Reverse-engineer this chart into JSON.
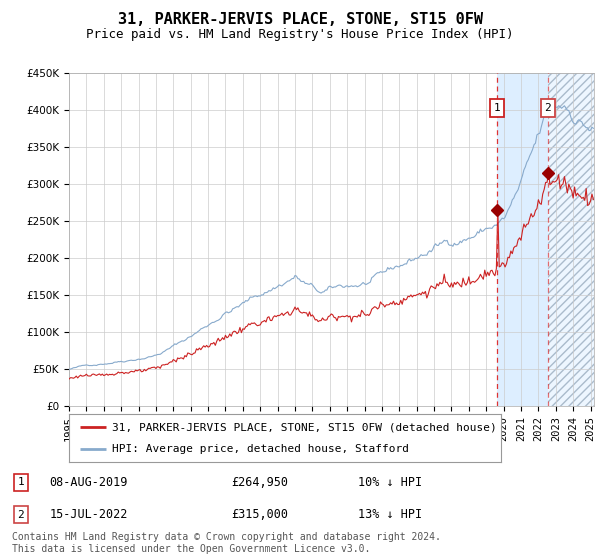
{
  "title": "31, PARKER-JERVIS PLACE, STONE, ST15 0FW",
  "subtitle": "Price paid vs. HM Land Registry's House Price Index (HPI)",
  "ylim": [
    0,
    450000
  ],
  "yticks": [
    0,
    50000,
    100000,
    150000,
    200000,
    250000,
    300000,
    350000,
    400000,
    450000
  ],
  "legend_line1": "31, PARKER-JERVIS PLACE, STONE, ST15 0FW (detached house)",
  "legend_line2": "HPI: Average price, detached house, Stafford",
  "date1": 2019.625,
  "value1": 264950,
  "label1": "1",
  "info1_date": "08-AUG-2019",
  "info1_price": "£264,950",
  "info1_hpi": "10% ↓ HPI",
  "date2": 2022.542,
  "value2": 315000,
  "label2": "2",
  "info2_date": "15-JUL-2022",
  "info2_price": "£315,000",
  "info2_hpi": "13% ↓ HPI",
  "vline_color": "#dd3333",
  "shade_color": "#ddeeff",
  "red_line_color": "#cc2222",
  "blue_line_color": "#88aacc",
  "marker_color": "#990000",
  "grid_color": "#cccccc",
  "bg_color": "#ffffff",
  "box1_color": "#cc2222",
  "box2_color": "#cc4444",
  "footnote_line1": "Contains HM Land Registry data © Crown copyright and database right 2024.",
  "footnote_line2": "This data is licensed under the Open Government Licence v3.0.",
  "title_fontsize": 11,
  "subtitle_fontsize": 9,
  "tick_fontsize": 7.5,
  "legend_fontsize": 8,
  "footnote_fontsize": 7
}
